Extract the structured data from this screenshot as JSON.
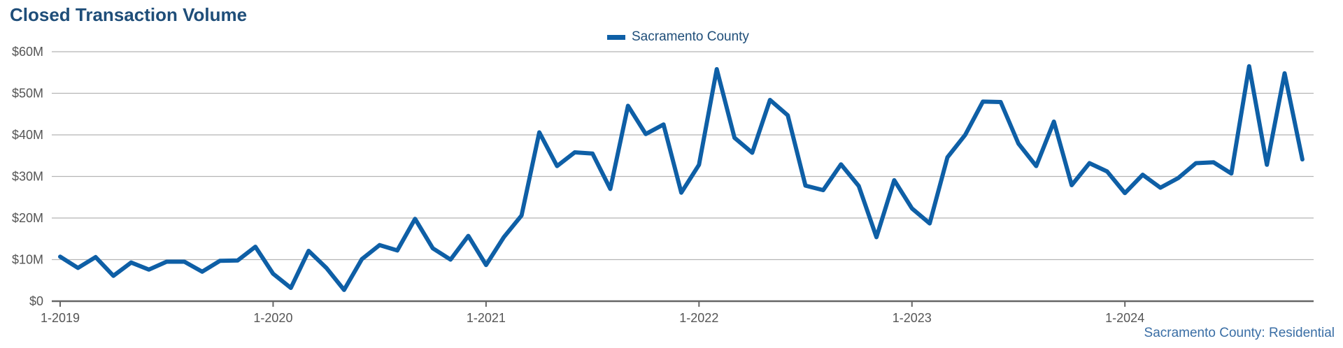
{
  "chart_data": {
    "type": "line",
    "title": "Closed Transaction Volume",
    "xlabel": "",
    "ylabel": "",
    "ylim": [
      0,
      60000000
    ],
    "y_ticks": [
      0,
      10000000,
      20000000,
      30000000,
      40000000,
      50000000,
      60000000
    ],
    "y_tick_labels": [
      "$0",
      "$10M",
      "$20M",
      "$30M",
      "$40M",
      "$50M",
      "$60M"
    ],
    "x_tick_labels": [
      "1-2019",
      "1-2020",
      "1-2021",
      "1-2022",
      "1-2023",
      "1-2024"
    ],
    "x_tick_dates": [
      "2019-01",
      "2020-01",
      "2021-01",
      "2022-01",
      "2023-01",
      "2024-01"
    ],
    "x_range": [
      "2019-01",
      "2024-11"
    ],
    "grid": true,
    "legend_position": "top-center",
    "series": [
      {
        "name": "Sacramento County",
        "color": "#0e5fa6",
        "x": [
          "2019-01",
          "2019-02",
          "2019-03",
          "2019-04",
          "2019-05",
          "2019-06",
          "2019-07",
          "2019-08",
          "2019-09",
          "2019-10",
          "2019-11",
          "2019-12",
          "2020-01",
          "2020-02",
          "2020-03",
          "2020-04",
          "2020-05",
          "2020-06",
          "2020-07",
          "2020-08",
          "2020-09",
          "2020-10",
          "2020-11",
          "2020-12",
          "2021-01",
          "2021-02",
          "2021-03",
          "2021-04",
          "2021-05",
          "2021-06",
          "2021-07",
          "2021-08",
          "2021-09",
          "2021-10",
          "2021-11",
          "2021-12",
          "2022-01",
          "2022-02",
          "2022-03",
          "2022-04",
          "2022-05",
          "2022-06",
          "2022-07",
          "2022-08",
          "2022-09",
          "2022-10",
          "2022-11",
          "2022-12",
          "2023-01",
          "2023-02",
          "2023-03",
          "2023-04",
          "2023-05",
          "2023-06",
          "2023-07",
          "2023-08",
          "2023-09",
          "2023-10",
          "2023-11",
          "2023-12",
          "2024-01",
          "2024-02",
          "2024-03",
          "2024-04",
          "2024-05",
          "2024-06",
          "2024-07",
          "2024-08",
          "2024-09",
          "2024-10",
          "2024-11"
        ],
        "values": [
          10700000,
          8000000,
          10600000,
          6100000,
          9300000,
          7600000,
          9500000,
          9500000,
          7100000,
          9700000,
          9800000,
          13100000,
          6600000,
          3200000,
          12100000,
          8000000,
          2700000,
          10100000,
          13500000,
          12200000,
          19800000,
          12700000,
          10000000,
          15700000,
          8700000,
          15400000,
          20600000,
          40600000,
          32500000,
          35800000,
          35500000,
          27000000,
          47000000,
          40200000,
          42500000,
          26100000,
          32800000,
          55800000,
          39300000,
          35700000,
          48400000,
          44700000,
          27800000,
          26700000,
          32900000,
          27700000,
          15400000,
          29100000,
          22300000,
          18700000,
          34600000,
          40000000,
          48000000,
          47900000,
          37900000,
          32500000,
          43200000,
          27900000,
          33200000,
          31200000,
          26000000,
          30400000,
          27300000,
          29600000,
          33200000,
          33400000,
          30700000,
          56500000,
          32800000,
          54800000,
          34100000
        ]
      }
    ]
  },
  "header": {
    "title": "Closed Transaction Volume"
  },
  "legend": {
    "label": "Sacramento County"
  },
  "footer": {
    "note": "Sacramento County: Residential"
  },
  "colors": {
    "title": "#1f4e79",
    "line": "#0e5fa6",
    "grid": "#b5b5b5",
    "axis": "#666666",
    "tick_text": "#555555",
    "footer": "#3a6ea5"
  }
}
